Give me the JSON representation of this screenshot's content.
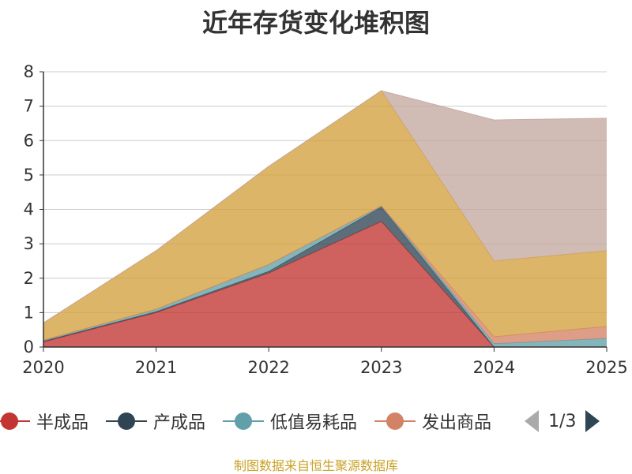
{
  "chart_data": {
    "type": "area",
    "stacked": true,
    "title": "近年存货变化堆积图",
    "x": [
      "2020",
      "2021",
      "2022",
      "2023",
      "2024",
      "2025"
    ],
    "ylim": [
      0,
      8
    ],
    "yticks": [
      0,
      1,
      2,
      3,
      4,
      5,
      6,
      7,
      8
    ],
    "grid": true,
    "series": [
      {
        "name": "半成品",
        "color": "#c23531",
        "values": [
          0.15,
          1.0,
          2.15,
          3.65,
          0.0,
          0.0
        ]
      },
      {
        "name": "产成品",
        "color": "#2f4554",
        "values": [
          0.02,
          0.03,
          0.05,
          0.42,
          0.0,
          0.0
        ]
      },
      {
        "name": "低值易耗品",
        "color": "#61a0a8",
        "values": [
          0.03,
          0.07,
          0.2,
          0.03,
          0.1,
          0.25
        ]
      },
      {
        "name": "发出商品",
        "color": "#d48265",
        "values": [
          0.0,
          0.0,
          0.0,
          0.0,
          0.2,
          0.35
        ]
      },
      {
        "name": "",
        "color": "#d4a03f",
        "values": [
          0.5,
          1.7,
          2.85,
          3.35,
          2.2,
          2.2
        ]
      },
      {
        "name": "",
        "color": "#c4a8a0",
        "values": [
          0.0,
          0.0,
          0.0,
          0.0,
          4.1,
          3.85
        ]
      }
    ],
    "legend": {
      "position": "bottom",
      "page": "1/3"
    },
    "source": "制图数据来自恒生聚源数据库"
  },
  "ui": {
    "legend_pager": "1/3"
  }
}
